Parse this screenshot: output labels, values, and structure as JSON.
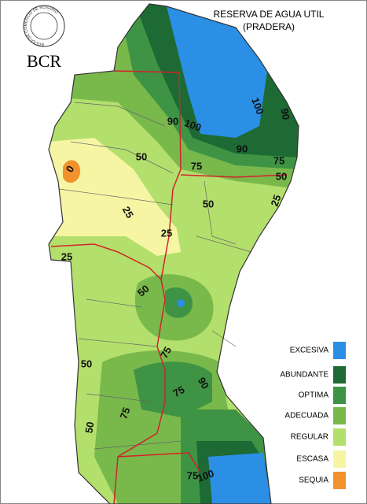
{
  "header": {
    "logo_ring": "BOLSA DE COMERCIO DE ROSARIO",
    "logo": "BCR",
    "title": [
      "RESERVA DE AGUA UTIL",
      "(PRADERA)"
    ]
  },
  "legend": [
    {
      "label": "EXCESIVA",
      "color": "#2b8fe6"
    },
    {
      "label": "ABUNDANTE",
      "color": "#1d6a34"
    },
    {
      "label": "OPTIMA",
      "color": "#3e9444"
    },
    {
      "label": "ADECUADA",
      "color": "#79b94c"
    },
    {
      "label": "REGULAR",
      "color": "#b3df6c"
    },
    {
      "label": "ESCASA",
      "color": "#f6f5a4"
    },
    {
      "label": "SEQUIA",
      "color": "#f1922e"
    }
  ],
  "contour_labels": [
    "0",
    "50",
    "90",
    "100",
    "100",
    "90",
    "90",
    "75",
    "75",
    "50",
    "25",
    "50",
    "25",
    "25",
    "25",
    "50",
    "75",
    "50",
    "90",
    "75",
    "75",
    "50",
    "75",
    "100"
  ]
}
